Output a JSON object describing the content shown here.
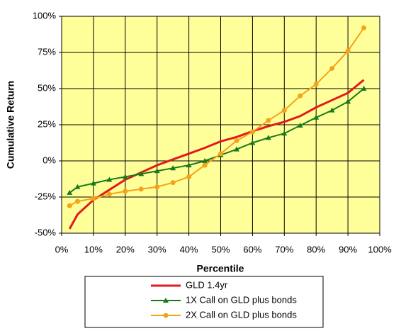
{
  "chart_data": {
    "type": "line",
    "x_label": "Percentile",
    "y_label": "Cumulative Return",
    "x": [
      2.5,
      5,
      10,
      15,
      20,
      25,
      30,
      35,
      40,
      45,
      50,
      55,
      60,
      65,
      70,
      75,
      80,
      85,
      90,
      95
    ],
    "series": [
      {
        "name": "GLD 1.4yr",
        "color": "#e31a1c",
        "marker": "none",
        "values": [
          -47,
          -37,
          -27,
          -20,
          -13,
          -8,
          -3,
          1,
          5,
          9,
          13.5,
          16.5,
          20.5,
          24,
          27,
          31,
          37,
          42,
          47,
          56
        ]
      },
      {
        "name": "1X Call on GLD plus bonds",
        "color": "#1a7a1a",
        "marker": "triangle",
        "values": [
          -22,
          -18,
          -15.5,
          -13,
          -11,
          -9,
          -7,
          -5,
          -3,
          0,
          4,
          8,
          12.5,
          16,
          19,
          24.5,
          30,
          35,
          41,
          50
        ]
      },
      {
        "name": "2X Call on GLD plus bonds",
        "color": "#f5a21b",
        "marker": "circle",
        "values": [
          -31,
          -28,
          -26,
          -23,
          -21,
          -19.5,
          -18,
          -15,
          -11,
          -3,
          5,
          14,
          20,
          28,
          35,
          45,
          53,
          64,
          76,
          92
        ]
      }
    ],
    "xlim": [
      0,
      100
    ],
    "xticks": [
      {
        "value": 0,
        "label": "0%"
      },
      {
        "value": 10,
        "label": "10%"
      },
      {
        "value": 20,
        "label": "20%"
      },
      {
        "value": 30,
        "label": "30%"
      },
      {
        "value": 40,
        "label": "40%"
      },
      {
        "value": 50,
        "label": "50%"
      },
      {
        "value": 60,
        "label": "60%"
      },
      {
        "value": 70,
        "label": "70%"
      },
      {
        "value": 80,
        "label": "80%"
      },
      {
        "value": 90,
        "label": "90%"
      },
      {
        "value": 100,
        "label": "100%"
      }
    ],
    "ylim": [
      -50,
      100
    ],
    "yticks": [
      {
        "value": -50,
        "label": "-50%"
      },
      {
        "value": -25,
        "label": "-25%"
      },
      {
        "value": 0,
        "label": "0%"
      },
      {
        "value": 25,
        "label": "25%"
      },
      {
        "value": 50,
        "label": "50%"
      },
      {
        "value": 75,
        "label": "75%"
      },
      {
        "value": 100,
        "label": "100%"
      }
    ],
    "grid": true,
    "legend": "bottom",
    "plot_background": "#ffff99"
  }
}
